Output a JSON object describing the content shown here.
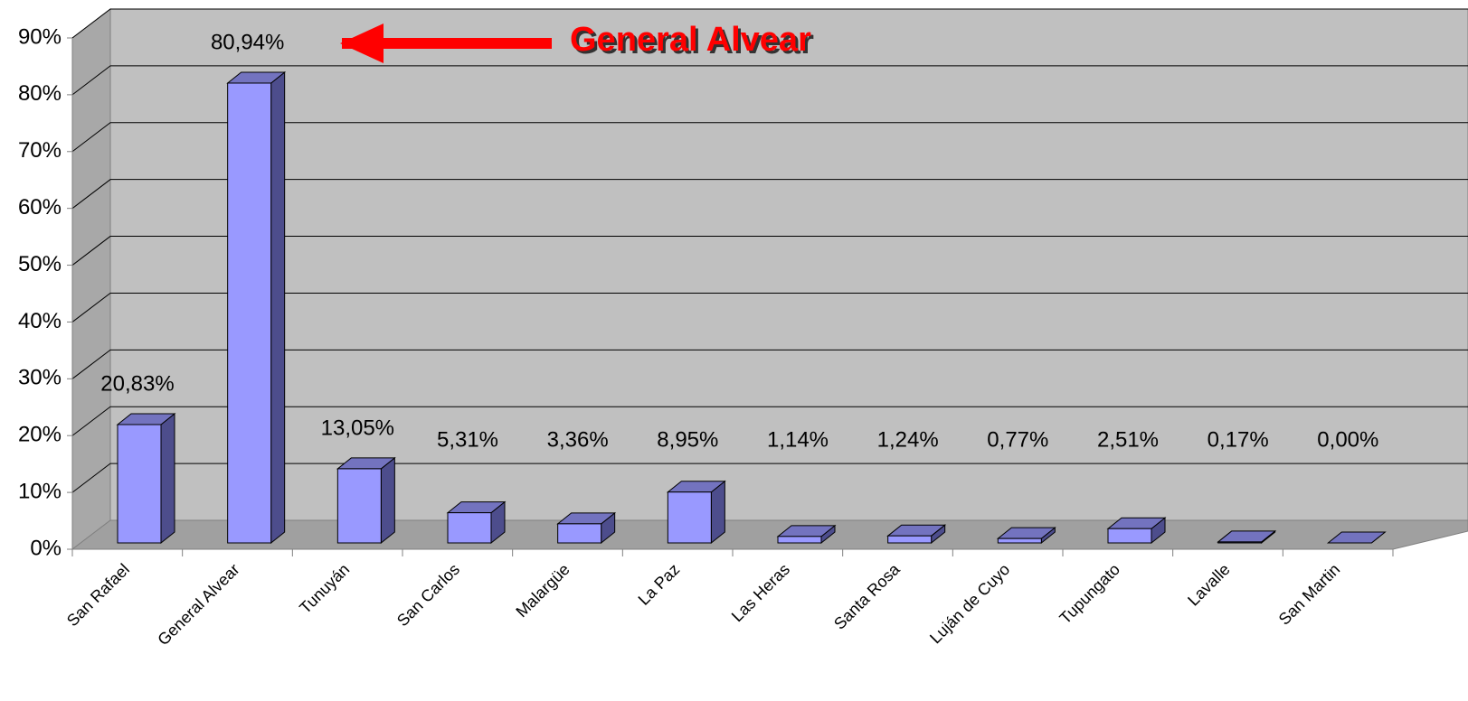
{
  "chart_data": {
    "type": "bar3d",
    "annotation": "General Alvear",
    "categories": [
      "San Rafael",
      "General Alvear",
      "Tunuyán",
      "San Carlos",
      "Malargüe",
      "La Paz",
      "Las Heras",
      "Santa Rosa",
      "Luján de Cuyo",
      "Tupungato",
      "Lavalle",
      "San Martin"
    ],
    "values": [
      20.83,
      80.94,
      13.05,
      5.31,
      3.36,
      8.95,
      1.14,
      1.24,
      0.77,
      2.51,
      0.17,
      0.0
    ],
    "value_labels": [
      "20,83%",
      "80,94%",
      "13,05%",
      "5,31%",
      "3,36%",
      "8,95%",
      "1,14%",
      "1,24%",
      "0,77%",
      "2,51%",
      "0,17%",
      "0,00%"
    ],
    "color": "#9999ff",
    "ylim": [
      0,
      90
    ],
    "yticks": [
      {
        "value": 0,
        "label": "0%"
      },
      {
        "value": 10,
        "label": "10%"
      },
      {
        "value": 20,
        "label": "20%"
      },
      {
        "value": 30,
        "label": "30%"
      },
      {
        "value": 40,
        "label": "40%"
      },
      {
        "value": 50,
        "label": "50%"
      },
      {
        "value": 60,
        "label": "60%"
      },
      {
        "value": 70,
        "label": "70%"
      },
      {
        "value": 80,
        "label": "80%"
      },
      {
        "value": 90,
        "label": "90%"
      }
    ],
    "grid": true
  }
}
